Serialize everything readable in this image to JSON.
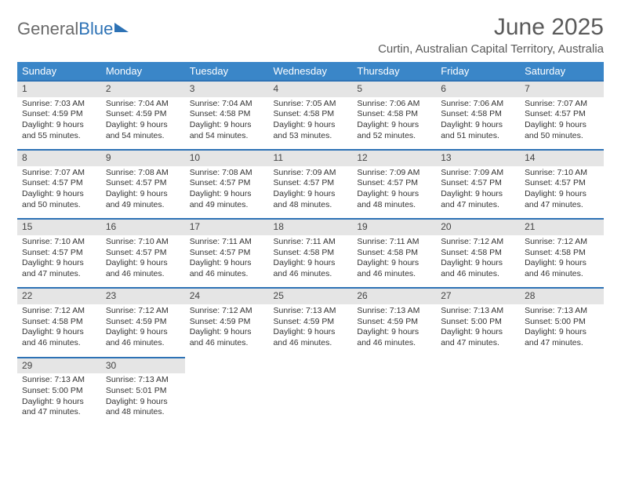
{
  "logo": {
    "part1": "General",
    "part2": "Blue"
  },
  "title": "June 2025",
  "location": "Curtin, Australian Capital Territory, Australia",
  "colors": {
    "header_bg": "#3a86c8",
    "header_text": "#ffffff",
    "daynum_bg": "#e5e5e5",
    "daynum_border": "#2d72b5",
    "text": "#333333",
    "logo_blue": "#2d72b5",
    "logo_gray": "#6a6a6a",
    "background": "#ffffff"
  },
  "typography": {
    "title_fontsize": 30,
    "location_fontsize": 15,
    "weekday_fontsize": 13,
    "daynum_fontsize": 12,
    "body_fontsize": 10.5
  },
  "weekdays": [
    "Sunday",
    "Monday",
    "Tuesday",
    "Wednesday",
    "Thursday",
    "Friday",
    "Saturday"
  ],
  "weeks": [
    [
      {
        "n": "1",
        "sunrise": "Sunrise: 7:03 AM",
        "sunset": "Sunset: 4:59 PM",
        "daylight": "Daylight: 9 hours and 55 minutes."
      },
      {
        "n": "2",
        "sunrise": "Sunrise: 7:04 AM",
        "sunset": "Sunset: 4:59 PM",
        "daylight": "Daylight: 9 hours and 54 minutes."
      },
      {
        "n": "3",
        "sunrise": "Sunrise: 7:04 AM",
        "sunset": "Sunset: 4:58 PM",
        "daylight": "Daylight: 9 hours and 54 minutes."
      },
      {
        "n": "4",
        "sunrise": "Sunrise: 7:05 AM",
        "sunset": "Sunset: 4:58 PM",
        "daylight": "Daylight: 9 hours and 53 minutes."
      },
      {
        "n": "5",
        "sunrise": "Sunrise: 7:06 AM",
        "sunset": "Sunset: 4:58 PM",
        "daylight": "Daylight: 9 hours and 52 minutes."
      },
      {
        "n": "6",
        "sunrise": "Sunrise: 7:06 AM",
        "sunset": "Sunset: 4:58 PM",
        "daylight": "Daylight: 9 hours and 51 minutes."
      },
      {
        "n": "7",
        "sunrise": "Sunrise: 7:07 AM",
        "sunset": "Sunset: 4:57 PM",
        "daylight": "Daylight: 9 hours and 50 minutes."
      }
    ],
    [
      {
        "n": "8",
        "sunrise": "Sunrise: 7:07 AM",
        "sunset": "Sunset: 4:57 PM",
        "daylight": "Daylight: 9 hours and 50 minutes."
      },
      {
        "n": "9",
        "sunrise": "Sunrise: 7:08 AM",
        "sunset": "Sunset: 4:57 PM",
        "daylight": "Daylight: 9 hours and 49 minutes."
      },
      {
        "n": "10",
        "sunrise": "Sunrise: 7:08 AM",
        "sunset": "Sunset: 4:57 PM",
        "daylight": "Daylight: 9 hours and 49 minutes."
      },
      {
        "n": "11",
        "sunrise": "Sunrise: 7:09 AM",
        "sunset": "Sunset: 4:57 PM",
        "daylight": "Daylight: 9 hours and 48 minutes."
      },
      {
        "n": "12",
        "sunrise": "Sunrise: 7:09 AM",
        "sunset": "Sunset: 4:57 PM",
        "daylight": "Daylight: 9 hours and 48 minutes."
      },
      {
        "n": "13",
        "sunrise": "Sunrise: 7:09 AM",
        "sunset": "Sunset: 4:57 PM",
        "daylight": "Daylight: 9 hours and 47 minutes."
      },
      {
        "n": "14",
        "sunrise": "Sunrise: 7:10 AM",
        "sunset": "Sunset: 4:57 PM",
        "daylight": "Daylight: 9 hours and 47 minutes."
      }
    ],
    [
      {
        "n": "15",
        "sunrise": "Sunrise: 7:10 AM",
        "sunset": "Sunset: 4:57 PM",
        "daylight": "Daylight: 9 hours and 47 minutes."
      },
      {
        "n": "16",
        "sunrise": "Sunrise: 7:10 AM",
        "sunset": "Sunset: 4:57 PM",
        "daylight": "Daylight: 9 hours and 46 minutes."
      },
      {
        "n": "17",
        "sunrise": "Sunrise: 7:11 AM",
        "sunset": "Sunset: 4:57 PM",
        "daylight": "Daylight: 9 hours and 46 minutes."
      },
      {
        "n": "18",
        "sunrise": "Sunrise: 7:11 AM",
        "sunset": "Sunset: 4:58 PM",
        "daylight": "Daylight: 9 hours and 46 minutes."
      },
      {
        "n": "19",
        "sunrise": "Sunrise: 7:11 AM",
        "sunset": "Sunset: 4:58 PM",
        "daylight": "Daylight: 9 hours and 46 minutes."
      },
      {
        "n": "20",
        "sunrise": "Sunrise: 7:12 AM",
        "sunset": "Sunset: 4:58 PM",
        "daylight": "Daylight: 9 hours and 46 minutes."
      },
      {
        "n": "21",
        "sunrise": "Sunrise: 7:12 AM",
        "sunset": "Sunset: 4:58 PM",
        "daylight": "Daylight: 9 hours and 46 minutes."
      }
    ],
    [
      {
        "n": "22",
        "sunrise": "Sunrise: 7:12 AM",
        "sunset": "Sunset: 4:58 PM",
        "daylight": "Daylight: 9 hours and 46 minutes."
      },
      {
        "n": "23",
        "sunrise": "Sunrise: 7:12 AM",
        "sunset": "Sunset: 4:59 PM",
        "daylight": "Daylight: 9 hours and 46 minutes."
      },
      {
        "n": "24",
        "sunrise": "Sunrise: 7:12 AM",
        "sunset": "Sunset: 4:59 PM",
        "daylight": "Daylight: 9 hours and 46 minutes."
      },
      {
        "n": "25",
        "sunrise": "Sunrise: 7:13 AM",
        "sunset": "Sunset: 4:59 PM",
        "daylight": "Daylight: 9 hours and 46 minutes."
      },
      {
        "n": "26",
        "sunrise": "Sunrise: 7:13 AM",
        "sunset": "Sunset: 4:59 PM",
        "daylight": "Daylight: 9 hours and 46 minutes."
      },
      {
        "n": "27",
        "sunrise": "Sunrise: 7:13 AM",
        "sunset": "Sunset: 5:00 PM",
        "daylight": "Daylight: 9 hours and 47 minutes."
      },
      {
        "n": "28",
        "sunrise": "Sunrise: 7:13 AM",
        "sunset": "Sunset: 5:00 PM",
        "daylight": "Daylight: 9 hours and 47 minutes."
      }
    ],
    [
      {
        "n": "29",
        "sunrise": "Sunrise: 7:13 AM",
        "sunset": "Sunset: 5:00 PM",
        "daylight": "Daylight: 9 hours and 47 minutes."
      },
      {
        "n": "30",
        "sunrise": "Sunrise: 7:13 AM",
        "sunset": "Sunset: 5:01 PM",
        "daylight": "Daylight: 9 hours and 48 minutes."
      },
      null,
      null,
      null,
      null,
      null
    ]
  ]
}
